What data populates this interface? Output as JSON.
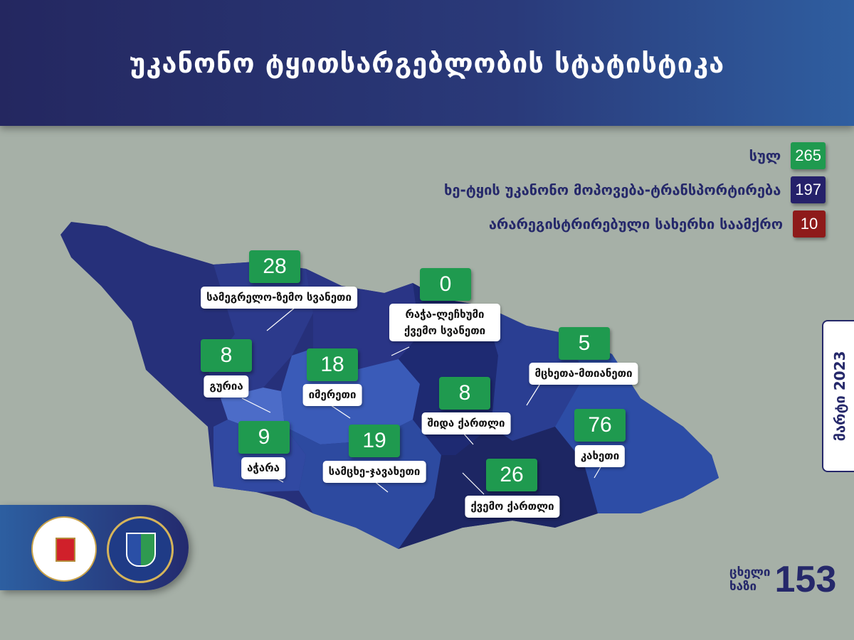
{
  "title": "უკანონო ტყითსარგებლობის სტატისტიკა",
  "legend": [
    {
      "label": "სულ",
      "value": "265",
      "color": "#1f9a4f"
    },
    {
      "label": "ხე-ტყის უკანონო მოპოვება-ტრანსპორტირება",
      "value": "197",
      "color": "#25216a"
    },
    {
      "label": "არარეგისტრირებული სახერხი საამქრო",
      "value": "10",
      "color": "#8e1a1a"
    }
  ],
  "regions": [
    {
      "name": "სამეგრელო-ზემო სვანეთი",
      "value": "28"
    },
    {
      "name": "რაჭა-ლეჩხუმი ქვემო სვანეთი",
      "value": "0"
    },
    {
      "name": "გურია",
      "value": "8"
    },
    {
      "name": "იმერეთი",
      "value": "18"
    },
    {
      "name": "მცხეთა-მთიანეთი",
      "value": "5"
    },
    {
      "name": "შიდა ქართლი",
      "value": "8"
    },
    {
      "name": "კახეთი",
      "value": "76"
    },
    {
      "name": "აჭარა",
      "value": "9"
    },
    {
      "name": "სამცხე-ჯავახეთი",
      "value": "19"
    },
    {
      "name": "ქვემო ქართლი",
      "value": "26"
    }
  ],
  "date": "მარტი 2023",
  "hotline": {
    "label_line1": "ცხელი",
    "label_line2": "ხაზი",
    "number": "153"
  },
  "logos": [
    "ministry-seal",
    "forestry-agency-seal"
  ]
}
